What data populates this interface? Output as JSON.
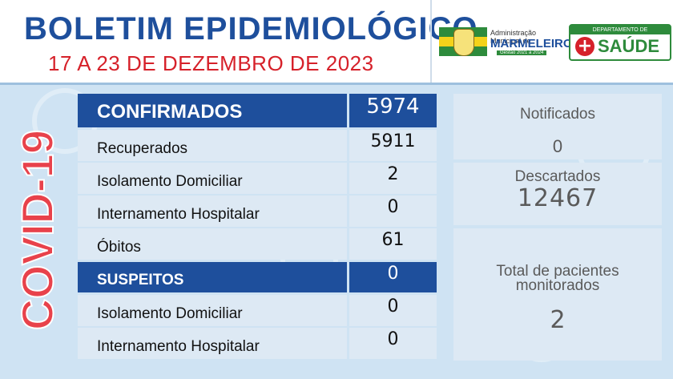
{
  "header": {
    "title": "BOLETIM EPIDEMIOLÓGICO",
    "subtitle": "17 A 23 DE DEZEMBRO DE 2023",
    "municipality": {
      "line1": "Administração Municipal de",
      "name": "MARMELEIRO",
      "period": "Gestão 2021 a 2024"
    },
    "department": {
      "top": "DEPARTAMENTO DE",
      "name": "SAÚDE"
    }
  },
  "side_label": "COVID-19",
  "table": {
    "confirmados": {
      "label": "CONFIRMADOS",
      "value": "5974"
    },
    "recuperados": {
      "label": "Recuperados",
      "value": "5911"
    },
    "isolamento": {
      "label": "Isolamento Domiciliar",
      "value": "2"
    },
    "internamento": {
      "label": "Internamento Hospitalar",
      "value": "0"
    },
    "obitos": {
      "label": "Óbitos",
      "value": "61"
    },
    "suspeitos": {
      "label": "SUSPEITOS",
      "value": "0"
    },
    "susp_isolamento": {
      "label": "Isolamento Domiciliar",
      "value": "0"
    },
    "susp_internamento": {
      "label": "Internamento Hospitalar",
      "value": "0"
    }
  },
  "right": {
    "notificados": {
      "label": "Notificados",
      "value": "0"
    },
    "descartados": {
      "label": "Descartados",
      "value": "12467"
    },
    "monitorados": {
      "label": "Total de pacientes monitorados",
      "value": "2"
    }
  },
  "colors": {
    "primary_blue": "#1e4f9c",
    "accent_red": "#d6212a",
    "green": "#2e8b3c",
    "background": "#cfe3f3"
  }
}
